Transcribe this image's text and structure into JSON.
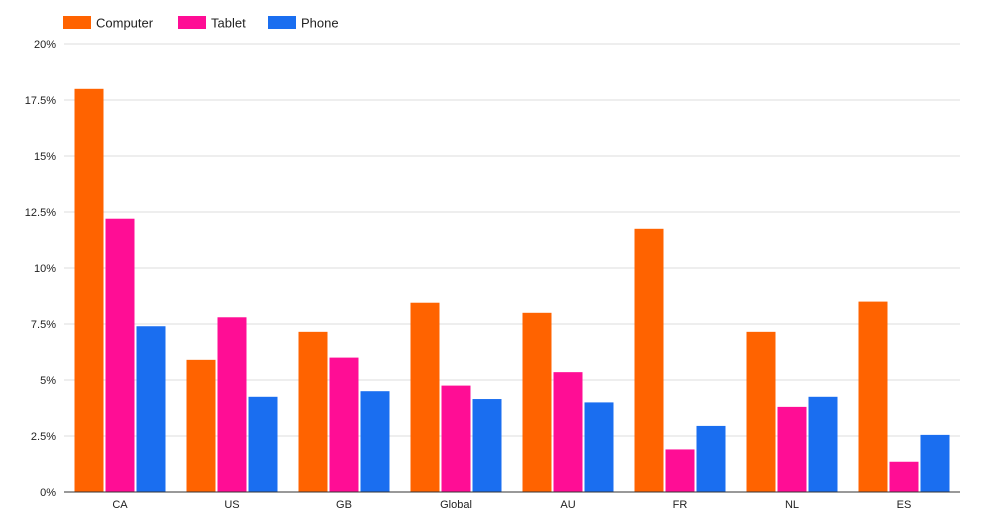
{
  "chart_data": {
    "type": "bar",
    "categories": [
      "CA",
      "US",
      "GB",
      "Global",
      "AU",
      "FR",
      "NL",
      "ES"
    ],
    "series": [
      {
        "name": "Computer",
        "color": "#ff6300",
        "values": [
          18.0,
          5.9,
          7.15,
          8.45,
          8.0,
          11.75,
          7.15,
          8.5
        ]
      },
      {
        "name": "Tablet",
        "color": "#ff0d95",
        "values": [
          12.2,
          7.8,
          6.0,
          4.75,
          5.35,
          1.9,
          3.8,
          1.35
        ]
      },
      {
        "name": "Phone",
        "color": "#1a6ef0",
        "values": [
          7.4,
          4.25,
          4.5,
          4.15,
          4.0,
          2.95,
          4.25,
          2.55
        ]
      }
    ],
    "yticks": [
      0,
      2.5,
      5,
      7.5,
      10,
      12.5,
      15,
      17.5,
      20
    ],
    "ytick_labels": [
      "0%",
      "2.5%",
      "5%",
      "7.5%",
      "10%",
      "12.5%",
      "15%",
      "17.5%",
      "20%"
    ],
    "ylim": [
      0,
      20
    ],
    "grid": true,
    "legend_position": "top-left",
    "title": "",
    "xlabel": "",
    "ylabel": ""
  }
}
